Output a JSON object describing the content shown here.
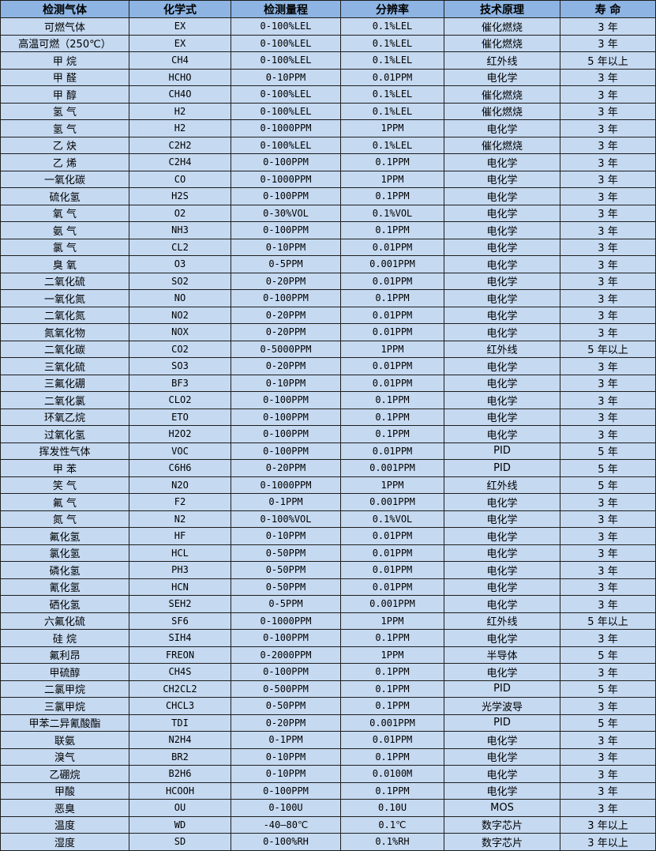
{
  "colors": {
    "header_bg": "#8db4e2",
    "row_bg": "#c5d9f1",
    "border": "#1e1e1e"
  },
  "table": {
    "headers": [
      "检测气体",
      "化学式",
      "检测量程",
      "分辨率",
      "技术原理",
      "寿 命"
    ],
    "rows": [
      [
        "可燃气体",
        "EX",
        "0-100%LEL",
        "0.1%LEL",
        "催化燃烧",
        "3 年"
      ],
      [
        "高温可燃（250℃）",
        "EX",
        "0-100%LEL",
        "0.1%LEL",
        "催化燃烧",
        "3 年"
      ],
      [
        "甲 烷",
        "CH4",
        "0-100%LEL",
        "0.1%LEL",
        "红外线",
        "5 年以上"
      ],
      [
        "甲 醛",
        "HCHO",
        "0-10PPM",
        "0.01PPM",
        "电化学",
        "3 年"
      ],
      [
        "甲 醇",
        "CH4O",
        "0-100%LEL",
        "0.1%LEL",
        "催化燃烧",
        "3 年"
      ],
      [
        "氢 气",
        "H2",
        "0-100%LEL",
        "0.1%LEL",
        "催化燃烧",
        "3 年"
      ],
      [
        "氢 气",
        "H2",
        "0-1000PPM",
        "1PPM",
        "电化学",
        "3 年"
      ],
      [
        "乙 炔",
        "C2H2",
        "0-100%LEL",
        "0.1%LEL",
        "催化燃烧",
        "3 年"
      ],
      [
        "乙 烯",
        "C2H4",
        "0-100PPM",
        "0.1PPM",
        "电化学",
        "3 年"
      ],
      [
        "一氧化碳",
        "CO",
        "0-1000PPM",
        "1PPM",
        "电化学",
        "3 年"
      ],
      [
        "硫化氢",
        "H2S",
        "0-100PPM",
        "0.1PPM",
        "电化学",
        "3 年"
      ],
      [
        "氧 气",
        "O2",
        "0-30%VOL",
        "0.1%VOL",
        "电化学",
        "3 年"
      ],
      [
        "氨 气",
        "NH3",
        "0-100PPM",
        "0.1PPM",
        "电化学",
        "3 年"
      ],
      [
        "氯 气",
        "CL2",
        "0-10PPM",
        "0.01PPM",
        "电化学",
        "3 年"
      ],
      [
        "臭 氧",
        "O3",
        "0-5PPM",
        "0.001PPM",
        "电化学",
        "3 年"
      ],
      [
        "二氧化硫",
        "SO2",
        "0-20PPM",
        "0.01PPM",
        "电化学",
        "3 年"
      ],
      [
        "一氧化氮",
        "NO",
        "0-100PPM",
        "0.1PPM",
        "电化学",
        "3 年"
      ],
      [
        "二氧化氮",
        "NO2",
        "0-20PPM",
        "0.01PPM",
        "电化学",
        "3 年"
      ],
      [
        "氮氧化物",
        "NOX",
        "0-20PPM",
        "0.01PPM",
        "电化学",
        "3 年"
      ],
      [
        "二氧化碳",
        "CO2",
        "0-5000PPM",
        "1PPM",
        "红外线",
        "5 年以上"
      ],
      [
        "三氧化硫",
        "SO3",
        "0-20PPM",
        "0.01PPM",
        "电化学",
        "3 年"
      ],
      [
        "三氟化硼",
        "BF3",
        "0-10PPM",
        "0.01PPM",
        "电化学",
        "3 年"
      ],
      [
        "二氧化氯",
        "CLO2",
        "0-100PPM",
        "0.1PPM",
        "电化学",
        "3 年"
      ],
      [
        "环氧乙烷",
        "ETO",
        "0-100PPM",
        "0.1PPM",
        "电化学",
        "3 年"
      ],
      [
        "过氧化氢",
        "H2O2",
        "0-100PPM",
        "0.1PPM",
        "电化学",
        "3 年"
      ],
      [
        "挥发性气体",
        "VOC",
        "0-100PPM",
        "0.01PPM",
        "PID",
        "5 年"
      ],
      [
        "甲 苯",
        "C6H6",
        "0-20PPM",
        "0.001PPM",
        "PID",
        "5 年"
      ],
      [
        "笑 气",
        "N2O",
        "0-1000PPM",
        "1PPM",
        "红外线",
        "5 年"
      ],
      [
        "氟 气",
        "F2",
        "0-1PPM",
        "0.001PPM",
        "电化学",
        "3 年"
      ],
      [
        "氮 气",
        "N2",
        "0-100%VOL",
        "0.1%VOL",
        "电化学",
        "3 年"
      ],
      [
        "氟化氢",
        "HF",
        "0-10PPM",
        "0.01PPM",
        "电化学",
        "3 年"
      ],
      [
        "氯化氢",
        "HCL",
        "0-50PPM",
        "0.01PPM",
        "电化学",
        "3 年"
      ],
      [
        "磷化氢",
        "PH3",
        "0-50PPM",
        "0.01PPM",
        "电化学",
        "3 年"
      ],
      [
        "氰化氢",
        "HCN",
        "0-50PPM",
        "0.01PPM",
        "电化学",
        "3 年"
      ],
      [
        "硒化氢",
        "SEH2",
        "0-5PPM",
        "0.001PPM",
        "电化学",
        "3 年"
      ],
      [
        "六氟化硫",
        "SF6",
        "0-1000PPM",
        "1PPM",
        "红外线",
        "5 年以上"
      ],
      [
        "硅 烷",
        "SIH4",
        "0-100PPM",
        "0.1PPM",
        "电化学",
        "3 年"
      ],
      [
        "氟利昂",
        "FREON",
        "0-2000PPM",
        "1PPM",
        "半导体",
        "5 年"
      ],
      [
        "甲硫醇",
        "CH4S",
        "0-100PPM",
        "0.1PPM",
        "电化学",
        "3 年"
      ],
      [
        "二氯甲烷",
        "CH2CL2",
        "0-500PPM",
        "0.1PPM",
        "PID",
        "5 年"
      ],
      [
        "三氯甲烷",
        "CHCL3",
        "0-50PPM",
        "0.1PPM",
        "光学波导",
        "3 年"
      ],
      [
        "甲苯二异氰酸酯",
        "TDI",
        "0-20PPM",
        "0.001PPM",
        "PID",
        "5 年"
      ],
      [
        "联氨",
        "N2H4",
        "0-1PPM",
        "0.01PPM",
        "电化学",
        "3 年"
      ],
      [
        "溴气",
        "BR2",
        "0-10PPM",
        "0.1PPM",
        "电化学",
        "3 年"
      ],
      [
        "乙硼烷",
        "B2H6",
        "0-10PPM",
        "0.0100M",
        "电化学",
        "3 年"
      ],
      [
        "甲酸",
        "HCOOH",
        "0-100PPM",
        "0.1PPM",
        "电化学",
        "3 年"
      ],
      [
        "恶臭",
        "OU",
        "0-100U",
        "0.10U",
        "MOS",
        "3 年"
      ],
      [
        "温度",
        "WD",
        "-40—80℃",
        "0.1℃",
        "数字芯片",
        "3 年以上"
      ],
      [
        "湿度",
        "SD",
        "0-100%RH",
        "0.1%RH",
        "数字芯片",
        "3 年以上"
      ]
    ]
  }
}
